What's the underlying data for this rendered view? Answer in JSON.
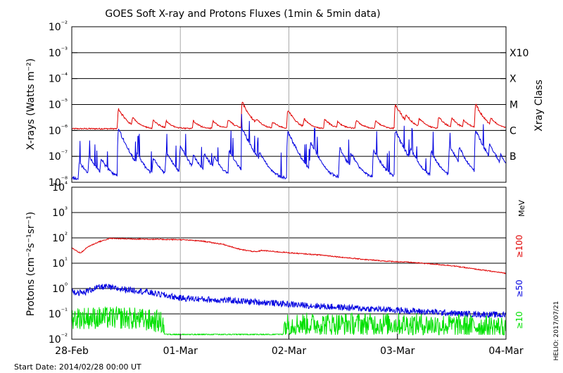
{
  "title": "GOES Soft X-ray and Protons Fluxes   (1min & 5min data)",
  "start_date": "Start Date: 2014/02/28 00:00 UT",
  "credit": "HELIO: 2017/07/21",
  "colors": {
    "red": "#e00000",
    "blue": "#0000e0",
    "green": "#00e000",
    "grid": "#000000",
    "day_line": "#aaaaaa"
  },
  "chart_data": [
    {
      "type": "line",
      "title": "GOES Soft X-ray and Protons Fluxes   (1min & 5min data)",
      "ylabel": "X-rays (Watts m⁻²)",
      "yscale": "log",
      "ylim": [
        1e-08,
        0.01
      ],
      "xlim_days": [
        0,
        4
      ],
      "x_ticks": [
        "28-Feb",
        "01-Mar",
        "02-Mar",
        "03-Mar",
        "04-Mar"
      ],
      "y_ticks": [
        "10⁻⁸",
        "10⁻⁷",
        "10⁻⁶",
        "10⁻⁵",
        "10⁻⁴",
        "10⁻³",
        "10⁻²"
      ],
      "right_axis_label": "Xray Class",
      "class_labels": [
        {
          "label": "B",
          "flux": 1e-07
        },
        {
          "label": "C",
          "flux": 1e-06
        },
        {
          "label": "M",
          "flux": 1e-05
        },
        {
          "label": "X",
          "flux": 0.0001
        },
        {
          "label": "X10",
          "flux": 0.001
        }
      ],
      "series": [
        {
          "color": "red",
          "note": "long channel",
          "baseline": 1.1e-06,
          "flares": [
            [
              0.43,
              7e-06
            ],
            [
              0.56,
              2.8e-06
            ],
            [
              0.75,
              2.4e-06
            ],
            [
              0.87,
              2.1e-06
            ],
            [
              1.12,
              2.3e-06
            ],
            [
              1.3,
              2.2e-06
            ],
            [
              1.44,
              2.5e-06
            ],
            [
              1.57,
              1.2e-05
            ],
            [
              1.7,
              2e-06
            ],
            [
              1.85,
              2e-06
            ],
            [
              1.99,
              6e-06
            ],
            [
              2.14,
              2.5e-06
            ],
            [
              2.33,
              2.7e-06
            ],
            [
              2.45,
              2e-06
            ],
            [
              2.62,
              2.4e-06
            ],
            [
              2.8,
              2.3e-06
            ],
            [
              2.98,
              1e-05
            ],
            [
              3.08,
              2.8e-06
            ],
            [
              3.2,
              2.7e-06
            ],
            [
              3.38,
              3.2e-06
            ],
            [
              3.5,
              2.8e-06
            ],
            [
              3.61,
              2.3e-06
            ],
            [
              3.72,
              1e-05
            ],
            [
              3.86,
              2.5e-06
            ]
          ]
        },
        {
          "color": "blue",
          "note": "short channel",
          "baseline": 1.2e-08,
          "flares": [
            [
              0.07,
              6e-08
            ],
            [
              0.16,
              9e-08
            ],
            [
              0.27,
              7e-08
            ],
            [
              0.43,
              1.1e-06
            ],
            [
              0.6,
              1e-07
            ],
            [
              0.75,
              8e-08
            ],
            [
              0.87,
              1.4e-07
            ],
            [
              1.0,
              2.5e-07
            ],
            [
              1.12,
              9e-08
            ],
            [
              1.22,
              1.2e-07
            ],
            [
              1.31,
              8e-08
            ],
            [
              1.45,
              1.6e-07
            ],
            [
              1.57,
              1.2e-06
            ],
            [
              1.73,
              1e-07
            ],
            [
              1.99,
              9e-07
            ],
            [
              2.2,
              3.5e-07
            ],
            [
              2.47,
              2e-07
            ],
            [
              2.57,
              1.1e-07
            ],
            [
              2.78,
              1.8e-07
            ],
            [
              2.98,
              1e-06
            ],
            [
              3.12,
              1.4e-07
            ],
            [
              3.31,
              1.5e-07
            ],
            [
              3.48,
              2.5e-07
            ],
            [
              3.57,
              1.8e-07
            ],
            [
              3.72,
              1e-06
            ],
            [
              3.85,
              2.2e-07
            ],
            [
              3.95,
              8e-08
            ]
          ]
        }
      ]
    },
    {
      "type": "line",
      "ylabel": "Protons (cm⁻²s⁻¹sr⁻¹)",
      "yscale": "log",
      "ylim": [
        0.01,
        10000
      ],
      "xlim_days": [
        0,
        4
      ],
      "x_ticks": [
        "28-Feb",
        "01-Mar",
        "02-Mar",
        "03-Mar",
        "04-Mar"
      ],
      "y_ticks": [
        "10⁻²",
        "10⁻¹",
        "10⁰",
        "10¹",
        "10²",
        "10³",
        "10⁴"
      ],
      "right_axis_label": "MeV",
      "threshold_line": 10,
      "series": [
        {
          "name": "≥100",
          "color": "red",
          "x": [
            0,
            0.08,
            0.15,
            0.25,
            0.35,
            0.5,
            0.75,
            1.0,
            1.2,
            1.4,
            1.55,
            1.7,
            1.75,
            1.9,
            2.1,
            2.3,
            2.5,
            2.7,
            2.9,
            3.1,
            3.3,
            3.5,
            3.7,
            4.0
          ],
          "y": [
            40,
            25,
            45,
            70,
            95,
            92,
            88,
            85,
            75,
            55,
            35,
            28,
            32,
            28,
            24,
            21,
            17,
            14,
            12,
            11,
            9.5,
            8,
            6,
            4
          ]
        },
        {
          "name": "≥50",
          "color": "blue",
          "x": [
            0,
            0.1,
            0.2,
            0.3,
            0.4,
            0.6,
            0.8,
            1.0,
            1.2,
            1.5,
            1.8,
            2.0,
            2.3,
            2.6,
            3.0,
            3.3,
            3.6,
            4.0
          ],
          "y": [
            0.8,
            0.65,
            1.0,
            1.2,
            1.0,
            0.85,
            0.6,
            0.42,
            0.38,
            0.33,
            0.28,
            0.24,
            0.2,
            0.17,
            0.14,
            0.12,
            0.1,
            0.09
          ]
        },
        {
          "name": "≥10",
          "color": "green",
          "x": [
            0,
            0.5,
            0.8,
            1.0,
            1.5,
            1.8,
            2.0,
            2.5,
            3.0,
            3.5,
            4.0
          ],
          "y": [
            0.07,
            0.07,
            0.05,
            0.015,
            0.015,
            0.015,
            0.04,
            0.04,
            0.04,
            0.035,
            0.03
          ]
        }
      ]
    }
  ]
}
